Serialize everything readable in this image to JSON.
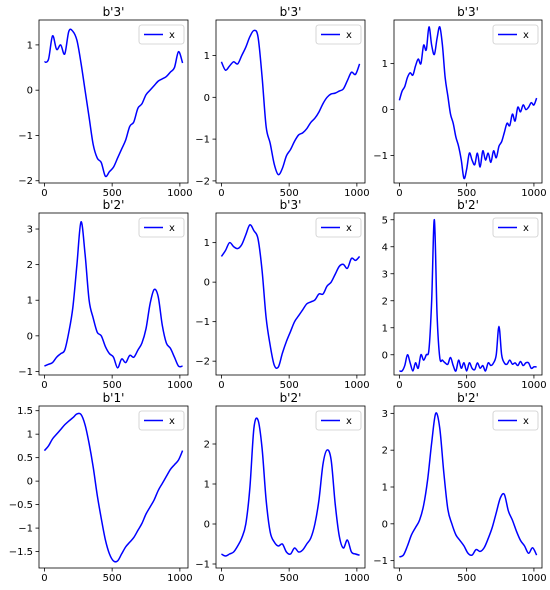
{
  "figure": {
    "line_color": "#0000ff",
    "axis_color": "#000000",
    "background": "#ffffff"
  },
  "chart_data": [
    {
      "type": "line",
      "title": "b'3'",
      "legend": "top-right",
      "ylim": [
        -2.05,
        1.55
      ],
      "xlim": [
        -40,
        1060
      ],
      "xticks": [
        0,
        500,
        1000
      ],
      "yticks": [
        -2,
        -1,
        0,
        1
      ],
      "series": [
        {
          "name": "x",
          "x": [
            0,
            30,
            60,
            90,
            120,
            150,
            180,
            210,
            240,
            270,
            300,
            330,
            360,
            390,
            420,
            450,
            480,
            510,
            540,
            570,
            600,
            630,
            660,
            690,
            720,
            750,
            780,
            810,
            840,
            870,
            900,
            930,
            960,
            990,
            1020
          ],
          "y": [
            0.62,
            0.68,
            1.2,
            0.9,
            1.0,
            0.8,
            1.3,
            1.3,
            1.1,
            0.6,
            0.0,
            -0.6,
            -1.2,
            -1.5,
            -1.6,
            -1.9,
            -1.8,
            -1.7,
            -1.5,
            -1.3,
            -1.1,
            -0.8,
            -0.7,
            -0.4,
            -0.3,
            -0.1,
            0.0,
            0.1,
            0.2,
            0.25,
            0.3,
            0.4,
            0.5,
            0.85,
            0.6
          ]
        }
      ]
    },
    {
      "type": "line",
      "title": "b'3'",
      "legend": "top-right",
      "ylim": [
        -2.05,
        1.85
      ],
      "xlim": [
        -40,
        1060
      ],
      "xticks": [
        0,
        500,
        1000
      ],
      "yticks": [
        -2,
        -1,
        0,
        1
      ],
      "series": [
        {
          "name": "x",
          "x": [
            0,
            30,
            60,
            90,
            120,
            150,
            180,
            210,
            240,
            270,
            300,
            330,
            360,
            390,
            420,
            450,
            480,
            510,
            540,
            570,
            600,
            630,
            660,
            690,
            720,
            750,
            780,
            810,
            840,
            870,
            900,
            930,
            960,
            990,
            1020
          ],
          "y": [
            0.85,
            0.65,
            0.75,
            0.85,
            0.8,
            1.0,
            1.2,
            1.45,
            1.6,
            1.45,
            0.5,
            -0.7,
            -1.1,
            -1.6,
            -1.85,
            -1.7,
            -1.4,
            -1.25,
            -1.05,
            -0.9,
            -0.85,
            -0.75,
            -0.6,
            -0.5,
            -0.35,
            -0.15,
            0.0,
            0.08,
            0.1,
            0.15,
            0.2,
            0.4,
            0.6,
            0.55,
            0.8
          ]
        }
      ]
    },
    {
      "type": "line",
      "title": "b'3'",
      "legend": "top-right",
      "ylim": [
        -1.6,
        1.95
      ],
      "xlim": [
        -40,
        1060
      ],
      "xticks": [
        0,
        500,
        1000
      ],
      "yticks": [
        -1,
        0,
        1
      ],
      "series": [
        {
          "name": "x",
          "x": [
            0,
            20,
            40,
            60,
            80,
            100,
            120,
            140,
            160,
            180,
            200,
            220,
            240,
            260,
            280,
            300,
            320,
            340,
            360,
            380,
            400,
            420,
            440,
            460,
            480,
            500,
            520,
            540,
            560,
            580,
            600,
            620,
            640,
            660,
            680,
            700,
            720,
            740,
            760,
            780,
            800,
            820,
            840,
            860,
            880,
            900,
            920,
            940,
            960,
            980,
            1000,
            1020
          ],
          "y": [
            0.2,
            0.4,
            0.5,
            0.7,
            0.8,
            0.75,
            0.95,
            1.1,
            1.0,
            1.4,
            1.3,
            1.8,
            1.4,
            1.2,
            1.55,
            1.8,
            1.4,
            0.7,
            0.3,
            -0.1,
            -0.3,
            -0.6,
            -0.8,
            -1.1,
            -1.5,
            -1.3,
            -0.95,
            -1.1,
            -1.2,
            -0.95,
            -1.25,
            -0.9,
            -1.1,
            -0.95,
            -1.15,
            -0.9,
            -1.05,
            -0.8,
            -0.7,
            -0.5,
            -0.3,
            -0.35,
            -0.1,
            -0.25,
            0.05,
            -0.05,
            0.1,
            0.0,
            0.05,
            0.15,
            0.1,
            0.25
          ]
        }
      ]
    },
    {
      "type": "line",
      "title": "b'2'",
      "legend": "top-right",
      "ylim": [
        -1.1,
        3.45
      ],
      "xlim": [
        -40,
        1060
      ],
      "xticks": [
        0,
        500,
        1000
      ],
      "yticks": [
        -1,
        0,
        1,
        2,
        3
      ],
      "series": [
        {
          "name": "x",
          "x": [
            0,
            30,
            60,
            90,
            120,
            150,
            180,
            210,
            240,
            270,
            300,
            330,
            360,
            390,
            420,
            450,
            480,
            510,
            540,
            570,
            600,
            630,
            660,
            690,
            720,
            750,
            780,
            810,
            840,
            870,
            900,
            930,
            960,
            990,
            1020
          ],
          "y": [
            -0.85,
            -0.8,
            -0.75,
            -0.6,
            -0.5,
            -0.4,
            0.1,
            0.8,
            2.0,
            3.2,
            2.3,
            1.0,
            0.5,
            0.1,
            0.0,
            -0.3,
            -0.5,
            -0.6,
            -0.9,
            -0.65,
            -0.75,
            -0.55,
            -0.6,
            -0.4,
            -0.2,
            0.2,
            0.9,
            1.3,
            1.1,
            0.3,
            -0.2,
            -0.35,
            -0.6,
            -0.85,
            -0.85
          ]
        }
      ]
    },
    {
      "type": "line",
      "title": "b'3'",
      "legend": "top-right",
      "ylim": [
        -2.35,
        1.75
      ],
      "xlim": [
        -40,
        1060
      ],
      "xticks": [
        0,
        500,
        1000
      ],
      "yticks": [
        -2,
        -1,
        0,
        1
      ],
      "series": [
        {
          "name": "x",
          "x": [
            0,
            30,
            60,
            90,
            120,
            150,
            180,
            210,
            240,
            270,
            300,
            330,
            360,
            390,
            420,
            450,
            480,
            510,
            540,
            570,
            600,
            630,
            660,
            690,
            720,
            750,
            780,
            810,
            840,
            870,
            900,
            930,
            960,
            990,
            1020
          ],
          "y": [
            0.65,
            0.8,
            1.0,
            0.9,
            0.85,
            0.95,
            1.2,
            1.45,
            1.3,
            1.1,
            0.3,
            -0.9,
            -1.6,
            -2.1,
            -2.15,
            -1.8,
            -1.5,
            -1.25,
            -1.0,
            -0.85,
            -0.7,
            -0.55,
            -0.5,
            -0.45,
            -0.3,
            -0.3,
            -0.1,
            0.0,
            0.2,
            0.4,
            0.45,
            0.35,
            0.6,
            0.55,
            0.65
          ]
        }
      ]
    },
    {
      "type": "line",
      "title": "b'2'",
      "legend": "top-right",
      "ylim": [
        -0.75,
        5.25
      ],
      "xlim": [
        -40,
        1060
      ],
      "xticks": [
        0,
        500,
        1000
      ],
      "yticks": [
        0,
        1,
        2,
        3,
        4,
        5
      ],
      "series": [
        {
          "name": "x",
          "x": [
            0,
            20,
            40,
            60,
            80,
            100,
            120,
            140,
            160,
            180,
            200,
            220,
            240,
            260,
            280,
            300,
            320,
            340,
            360,
            380,
            400,
            420,
            440,
            460,
            480,
            500,
            520,
            540,
            560,
            580,
            600,
            620,
            640,
            660,
            680,
            700,
            720,
            740,
            760,
            780,
            800,
            820,
            840,
            860,
            880,
            900,
            920,
            940,
            960,
            980,
            1000,
            1020
          ],
          "y": [
            -0.6,
            -0.6,
            -0.4,
            0.0,
            -0.3,
            -0.6,
            -0.3,
            -0.5,
            0.0,
            -0.2,
            0.0,
            0.2,
            2.0,
            5.0,
            1.5,
            -0.1,
            -0.2,
            -0.3,
            -0.35,
            -0.1,
            -0.4,
            -0.6,
            -0.2,
            -0.5,
            -0.3,
            -0.6,
            -0.3,
            -0.5,
            -0.55,
            -0.3,
            -0.5,
            -0.4,
            -0.6,
            -0.3,
            -0.4,
            -0.3,
            0.0,
            1.05,
            0.0,
            -0.3,
            -0.35,
            -0.2,
            -0.35,
            -0.3,
            -0.4,
            -0.25,
            -0.4,
            -0.3,
            -0.3,
            -0.5,
            -0.45,
            -0.45
          ]
        }
      ]
    },
    {
      "type": "line",
      "title": "b'1'",
      "legend": "top-right",
      "ylim": [
        -1.85,
        1.6
      ],
      "xlim": [
        -40,
        1060
      ],
      "xticks": [
        0,
        500,
        1000
      ],
      "yticks": [
        -1.5,
        -1.0,
        -0.5,
        0.0,
        0.5,
        1.0,
        1.5
      ],
      "series": [
        {
          "name": "x",
          "x": [
            0,
            30,
            60,
            90,
            120,
            150,
            180,
            210,
            240,
            270,
            300,
            330,
            360,
            390,
            420,
            450,
            480,
            510,
            540,
            570,
            600,
            630,
            660,
            690,
            720,
            750,
            780,
            810,
            840,
            870,
            900,
            930,
            960,
            990,
            1020
          ],
          "y": [
            0.65,
            0.75,
            0.9,
            1.0,
            1.1,
            1.2,
            1.28,
            1.35,
            1.43,
            1.42,
            1.2,
            0.8,
            0.3,
            -0.3,
            -0.8,
            -1.25,
            -1.55,
            -1.7,
            -1.7,
            -1.55,
            -1.4,
            -1.3,
            -1.2,
            -1.05,
            -0.9,
            -0.7,
            -0.55,
            -0.4,
            -0.2,
            -0.05,
            0.1,
            0.25,
            0.35,
            0.45,
            0.65
          ]
        }
      ]
    },
    {
      "type": "line",
      "title": "b'2'",
      "legend": "top-right",
      "ylim": [
        -1.1,
        2.95
      ],
      "xlim": [
        -40,
        1060
      ],
      "xticks": [
        0,
        500,
        1000
      ],
      "yticks": [
        -1,
        0,
        1,
        2
      ],
      "series": [
        {
          "name": "x",
          "x": [
            0,
            30,
            60,
            90,
            120,
            150,
            180,
            210,
            240,
            270,
            300,
            330,
            360,
            390,
            420,
            450,
            480,
            510,
            540,
            570,
            600,
            630,
            660,
            690,
            720,
            750,
            780,
            810,
            840,
            870,
            900,
            930,
            960,
            990,
            1020
          ],
          "y": [
            -0.75,
            -0.8,
            -0.75,
            -0.7,
            -0.55,
            -0.35,
            0.0,
            0.9,
            2.4,
            2.6,
            1.9,
            0.6,
            -0.2,
            -0.45,
            -0.55,
            -0.5,
            -0.7,
            -0.75,
            -0.6,
            -0.7,
            -0.65,
            -0.5,
            -0.35,
            0.0,
            0.6,
            1.5,
            1.85,
            1.6,
            0.5,
            -0.3,
            -0.6,
            -0.4,
            -0.7,
            -0.75,
            -0.78
          ]
        }
      ]
    },
    {
      "type": "line",
      "title": "b'2'",
      "legend": "top-right",
      "ylim": [
        -1.2,
        3.2
      ],
      "xlim": [
        -40,
        1060
      ],
      "xticks": [
        0,
        500,
        1000
      ],
      "yticks": [
        -1,
        0,
        1,
        2,
        3
      ],
      "series": [
        {
          "name": "x",
          "x": [
            0,
            30,
            60,
            90,
            120,
            150,
            180,
            210,
            240,
            270,
            300,
            330,
            360,
            390,
            420,
            450,
            480,
            510,
            540,
            570,
            600,
            630,
            660,
            690,
            720,
            750,
            780,
            810,
            840,
            870,
            900,
            930,
            960,
            990,
            1020
          ],
          "y": [
            -0.9,
            -0.85,
            -0.6,
            -0.3,
            -0.1,
            0.1,
            0.5,
            1.2,
            2.2,
            3.0,
            2.6,
            1.4,
            0.4,
            0.0,
            -0.3,
            -0.45,
            -0.6,
            -0.8,
            -0.85,
            -0.7,
            -0.75,
            -0.65,
            -0.4,
            -0.1,
            0.3,
            0.7,
            0.8,
            0.35,
            0.1,
            -0.2,
            -0.45,
            -0.6,
            -0.8,
            -0.65,
            -0.85
          ]
        }
      ]
    }
  ]
}
